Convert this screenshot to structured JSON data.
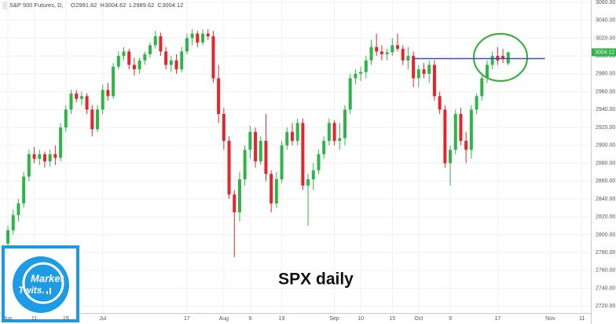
{
  "chart_data": {
    "type": "candlestick",
    "title": "S&P 500 Futures, D,",
    "ohlc_labels": [
      "O",
      "H",
      "L",
      "C"
    ],
    "annotation": "SPX daily",
    "logo": [
      "Market",
      "Twits."
    ],
    "up_color": "#2fb449",
    "down_color": "#e4252b",
    "level_line": {
      "value": 2997,
      "x": [
        77,
        102
      ],
      "color": "#3b4fb0"
    },
    "grid": true,
    "xlim": [
      -1.5,
      110.7
    ],
    "xticks": [
      {
        "value": 0,
        "label": "Jun"
      },
      {
        "value": 5,
        "label": "11"
      },
      {
        "value": 11,
        "label": "19"
      },
      {
        "value": 18,
        "label": "Jul"
      },
      {
        "value": 34,
        "label": "17"
      },
      {
        "value": 41,
        "label": "Aug"
      },
      {
        "value": 46,
        "label": "9"
      },
      {
        "value": 52,
        "label": "19"
      },
      {
        "value": 62,
        "label": "Sep"
      },
      {
        "value": 67,
        "label": "10"
      },
      {
        "value": 73,
        "label": "15"
      },
      {
        "value": 78,
        "label": "Oct"
      },
      {
        "value": 84,
        "label": "9"
      },
      {
        "value": 93,
        "label": "17"
      },
      {
        "value": 103,
        "label": "Nov"
      },
      {
        "value": 109,
        "label": "11"
      }
    ],
    "ylim": [
      2712.4,
      3062.6
    ],
    "yticks": [
      {
        "value": 2720,
        "label": "2720.00"
      },
      {
        "value": 2740,
        "label": "2740.00"
      },
      {
        "value": 2760,
        "label": "2760.00"
      },
      {
        "value": 2780,
        "label": "2780.00"
      },
      {
        "value": 2800,
        "label": "2800.00"
      },
      {
        "value": 2820,
        "label": "2820.00"
      },
      {
        "value": 2840,
        "label": "2840.00"
      },
      {
        "value": 2860,
        "label": "2860.00"
      },
      {
        "value": 2880,
        "label": "2880.00"
      },
      {
        "value": 2900,
        "label": "2900.00"
      },
      {
        "value": 2920,
        "label": "2920.00"
      },
      {
        "value": 2940,
        "label": "2940.00"
      },
      {
        "value": 2960,
        "label": "2960.00"
      },
      {
        "value": 2980,
        "label": "2980.00"
      },
      {
        "value": 3000,
        "label": "3000.00"
      },
      {
        "value": 3020,
        "label": "3020.00"
      },
      {
        "value": 3040,
        "label": "3040.00"
      },
      {
        "value": 3060,
        "label": "3060.00"
      }
    ],
    "open": [
      2790,
      2805,
      2822,
      2835,
      2865,
      2890,
      2885,
      2890,
      2882,
      2890,
      2886,
      2920,
      2940,
      2958,
      2952,
      2955,
      2940,
      2918,
      2940,
      2962,
      2955,
      2988,
      3000,
      3005,
      2990,
      2985,
      2995,
      3002,
      3012,
      3022,
      3005,
      2990,
      2995,
      2985,
      3005,
      3020,
      3025,
      3015,
      3025,
      3022,
      2975,
      2935,
      2905,
      2845,
      2825,
      2862,
      2895,
      2915,
      2882,
      2905,
      2868,
      2835,
      2862,
      2900,
      2915,
      2905,
      2925,
      2855,
      2862,
      2872,
      2890,
      2905,
      2925,
      2905,
      2908,
      2940,
      2975,
      2980,
      2982,
      2995,
      3010,
      3005,
      3002,
      3004,
      3012,
      3008,
      2995,
      3000,
      2975,
      2985,
      2980,
      2990,
      2955,
      2940,
      2880,
      2895,
      2935,
      2905,
      2895,
      2940,
      2955,
      2975,
      2990,
      3000,
      3000,
      2991.62
    ],
    "high": [
      2810,
      2828,
      2840,
      2870,
      2895,
      2898,
      2895,
      2893,
      2895,
      2900,
      2925,
      2945,
      2962,
      2962,
      2960,
      2958,
      2945,
      2945,
      2968,
      2970,
      2992,
      3005,
      3010,
      3008,
      2998,
      2998,
      3005,
      3015,
      3028,
      3026,
      3010,
      3000,
      3002,
      3010,
      3025,
      3030,
      3028,
      3030,
      3030,
      3028,
      2990,
      2942,
      2910,
      2850,
      2870,
      2900,
      2922,
      2920,
      2910,
      2935,
      2872,
      2870,
      2905,
      2920,
      2925,
      2930,
      2930,
      2868,
      2880,
      2895,
      2910,
      2930,
      2928,
      2925,
      2945,
      2980,
      2985,
      2988,
      3000,
      3018,
      3025,
      3012,
      3008,
      3020,
      3025,
      3012,
      3010,
      3005,
      2990,
      2992,
      2995,
      2995,
      2960,
      2945,
      2900,
      2940,
      2942,
      2915,
      2945,
      2958,
      2978,
      2995,
      3005,
      3010,
      3008,
      3004.62
    ],
    "low": [
      2785,
      2800,
      2815,
      2830,
      2860,
      2880,
      2878,
      2875,
      2876,
      2878,
      2882,
      2915,
      2935,
      2948,
      2945,
      2935,
      2910,
      2915,
      2935,
      2950,
      2952,
      2985,
      2995,
      2985,
      2978,
      2980,
      2990,
      2998,
      3008,
      3000,
      2985,
      2982,
      2980,
      2982,
      3002,
      3012,
      3010,
      3012,
      3018,
      2970,
      2925,
      2895,
      2840,
      2775,
      2815,
      2855,
      2885,
      2875,
      2878,
      2860,
      2825,
      2830,
      2858,
      2895,
      2900,
      2900,
      2850,
      2810,
      2850,
      2868,
      2885,
      2900,
      2900,
      2895,
      2900,
      2935,
      2968,
      2972,
      2975,
      2990,
      3000,
      2995,
      2995,
      3000,
      3005,
      2990,
      2985,
      2965,
      2965,
      2975,
      2970,
      2950,
      2935,
      2875,
      2855,
      2890,
      2900,
      2880,
      2885,
      2935,
      2950,
      2970,
      2985,
      2990,
      2992,
      2989.62
    ],
    "close": [
      2805,
      2822,
      2835,
      2865,
      2890,
      2885,
      2890,
      2882,
      2890,
      2886,
      2920,
      2940,
      2958,
      2952,
      2955,
      2940,
      2918,
      2940,
      2962,
      2955,
      2988,
      3000,
      3005,
      2990,
      2985,
      2995,
      3002,
      3012,
      3022,
      3005,
      2990,
      2995,
      2985,
      3005,
      3020,
      3025,
      3015,
      3025,
      3022,
      2975,
      2935,
      2905,
      2845,
      2825,
      2862,
      2895,
      2915,
      2882,
      2905,
      2868,
      2835,
      2862,
      2900,
      2915,
      2905,
      2925,
      2855,
      2862,
      2872,
      2890,
      2905,
      2925,
      2905,
      2908,
      2940,
      2975,
      2980,
      2982,
      2995,
      3010,
      3005,
      3002,
      3004,
      3012,
      3008,
      2995,
      3000,
      2975,
      2985,
      2980,
      2990,
      2955,
      2940,
      2880,
      2895,
      2935,
      2905,
      2895,
      2940,
      2955,
      2975,
      2990,
      3000,
      2995,
      2997,
      3004.12
    ]
  }
}
